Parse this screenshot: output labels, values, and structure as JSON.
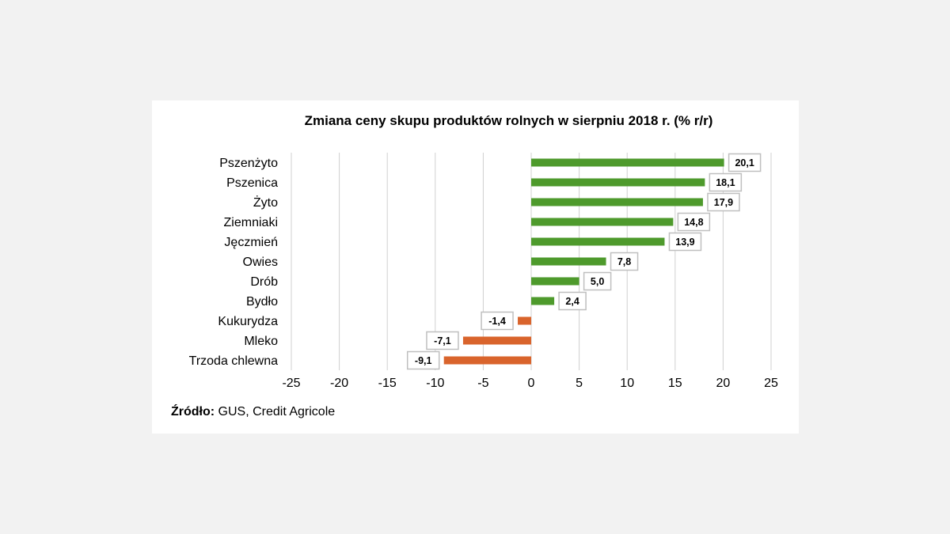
{
  "chart_data": {
    "type": "bar",
    "orientation": "horizontal",
    "title": "Zmiana ceny skupu produktów rolnych w sierpniu 2018 r. (% r/r)",
    "categories": [
      "Pszenżyto",
      "Pszenica",
      "Żyto",
      "Ziemniaki",
      "Jęczmień",
      "Owies",
      "Drób",
      "Bydło",
      "Kukurydza",
      "Mleko",
      "Trzoda chlewna"
    ],
    "values": [
      20.1,
      18.1,
      17.9,
      14.8,
      13.9,
      7.8,
      5.0,
      2.4,
      -1.4,
      -7.1,
      -9.1
    ],
    "data_labels": [
      "20,1",
      "18,1",
      "17,9",
      "14,8",
      "13,9",
      "7,8",
      "5,0",
      "2,4",
      "-1,4",
      "-7,1",
      "-9,1"
    ],
    "xlim": [
      -25,
      25
    ],
    "xticks": [
      -25,
      -20,
      -15,
      -10,
      -5,
      0,
      5,
      10,
      15,
      20,
      25
    ],
    "xtick_labels": [
      "-25",
      "-20",
      "-15",
      "-10",
      "-5",
      "0",
      "5",
      "10",
      "15",
      "20",
      "25"
    ],
    "grid": "vertical",
    "legend": "none",
    "colors": {
      "positive": "#4e9a2c",
      "negative": "#d9642c",
      "grid": "#d0d0d0",
      "label_border": "#bfbfbf"
    }
  },
  "source": {
    "label": "Źródło:",
    "text": " GUS, Credit Agricole"
  }
}
